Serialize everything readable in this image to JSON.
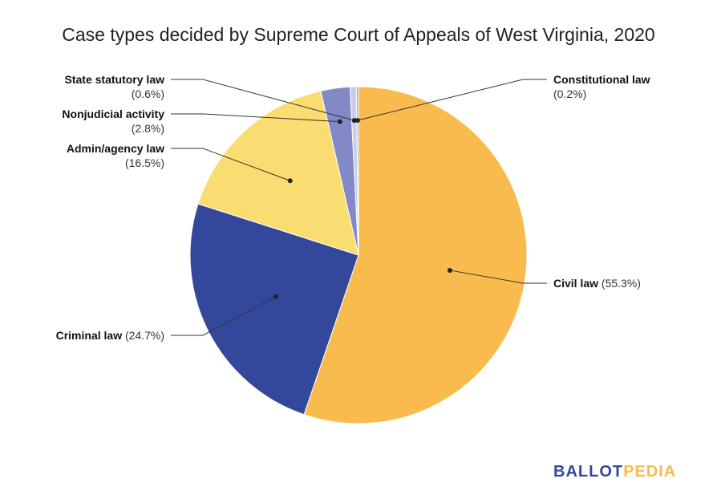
{
  "chart_data": {
    "type": "pie",
    "title": "Case types decided by Supreme Court of Appeals of West Virginia, 2020",
    "slices": [
      {
        "label": "Civil law",
        "pct_text": "(55.3%)",
        "value": 55.3,
        "color": "#F9BA4E"
      },
      {
        "label": "Criminal law",
        "pct_text": "(24.7%)",
        "value": 24.7,
        "color": "#34489B"
      },
      {
        "label": "Admin/agency law",
        "pct_text": "(16.5%)",
        "value": 16.5,
        "color": "#FADD70"
      },
      {
        "label": "Nonjudicial activity",
        "pct_text": "(2.8%)",
        "value": 2.8,
        "color": "#8389C7"
      },
      {
        "label": "State statutory law",
        "pct_text": "(0.6%)",
        "value": 0.6,
        "color": "#C9CDEB"
      },
      {
        "label": "Constitutional law",
        "pct_text": "(0.2%)",
        "value": 0.2,
        "color": "#9EA4D6"
      }
    ]
  },
  "brand": {
    "part1": "BALLOT",
    "part2": "PEDIA",
    "color1": "#34489B",
    "color2": "#F9BA4E"
  }
}
